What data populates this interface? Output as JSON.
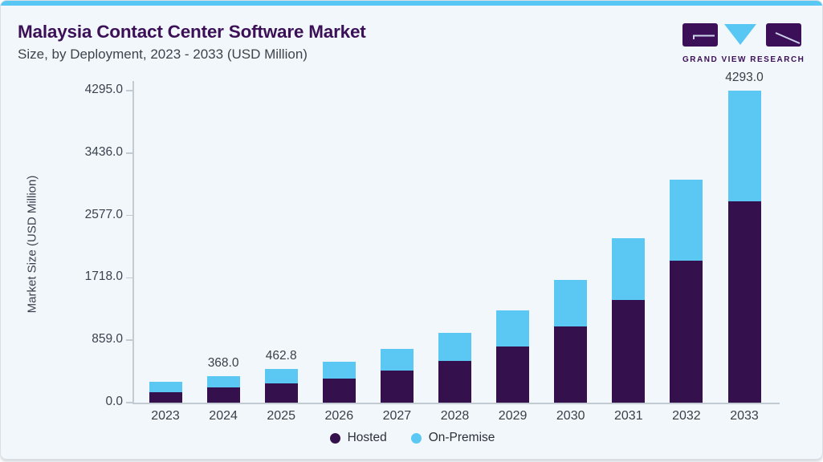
{
  "page": {
    "background_color": "#f1f7fb",
    "top_strip_color": "#58c7f3",
    "border_color": "#d9dfe5"
  },
  "header": {
    "title": "Malaysia Contact Center Software Market",
    "subtitle": "Size, by Deployment, 2023 - 2033 (USD Million)",
    "title_color": "#3b1057"
  },
  "logo": {
    "wordmark": "GRAND VIEW RESEARCH",
    "purple": "#3b1058",
    "blue": "#58c7f3",
    "glyph_line_color": "#cdd3ea"
  },
  "chart_data": {
    "type": "bar",
    "stacked": true,
    "title": "Malaysia Contact Center Software Market",
    "subtitle": "Size, by Deployment, 2023 - 2033 (USD Million)",
    "xlabel": "",
    "ylabel": "Market Size (USD Million)",
    "categories": [
      "2023",
      "2024",
      "2025",
      "2026",
      "2027",
      "2028",
      "2029",
      "2030",
      "2031",
      "2032",
      "2033"
    ],
    "series": [
      {
        "name": "Hosted",
        "color": "#34114d",
        "values": [
          146,
          206,
          265,
          332,
          442,
          572,
          776,
          1048,
          1417,
          1958,
          2775
        ]
      },
      {
        "name": "On-Premise",
        "color": "#5ac8f3",
        "values": [
          139,
          162,
          197.8,
          232,
          295,
          392,
          490,
          645,
          846,
          1108,
          1518
        ]
      }
    ],
    "totals": [
      285,
      368.0,
      462.8,
      564,
      737,
      964,
      1266,
      1693,
      2263,
      3066,
      4293.0
    ],
    "value_labels": [
      "",
      "368.0",
      "462.8",
      "",
      "",
      "",
      "",
      "",
      "",
      "",
      "4293.0"
    ],
    "y_ticks": [
      "4295.0",
      "3436.0",
      "2577.0",
      "1718.0",
      "859.0",
      "0.0"
    ],
    "ylim": [
      0,
      4295
    ],
    "grid": false,
    "legend_position": "bottom-center"
  },
  "legend": {
    "items": [
      {
        "label": "Hosted",
        "color": "#34114d"
      },
      {
        "label": "On-Premise",
        "color": "#5ac8f3"
      }
    ]
  }
}
